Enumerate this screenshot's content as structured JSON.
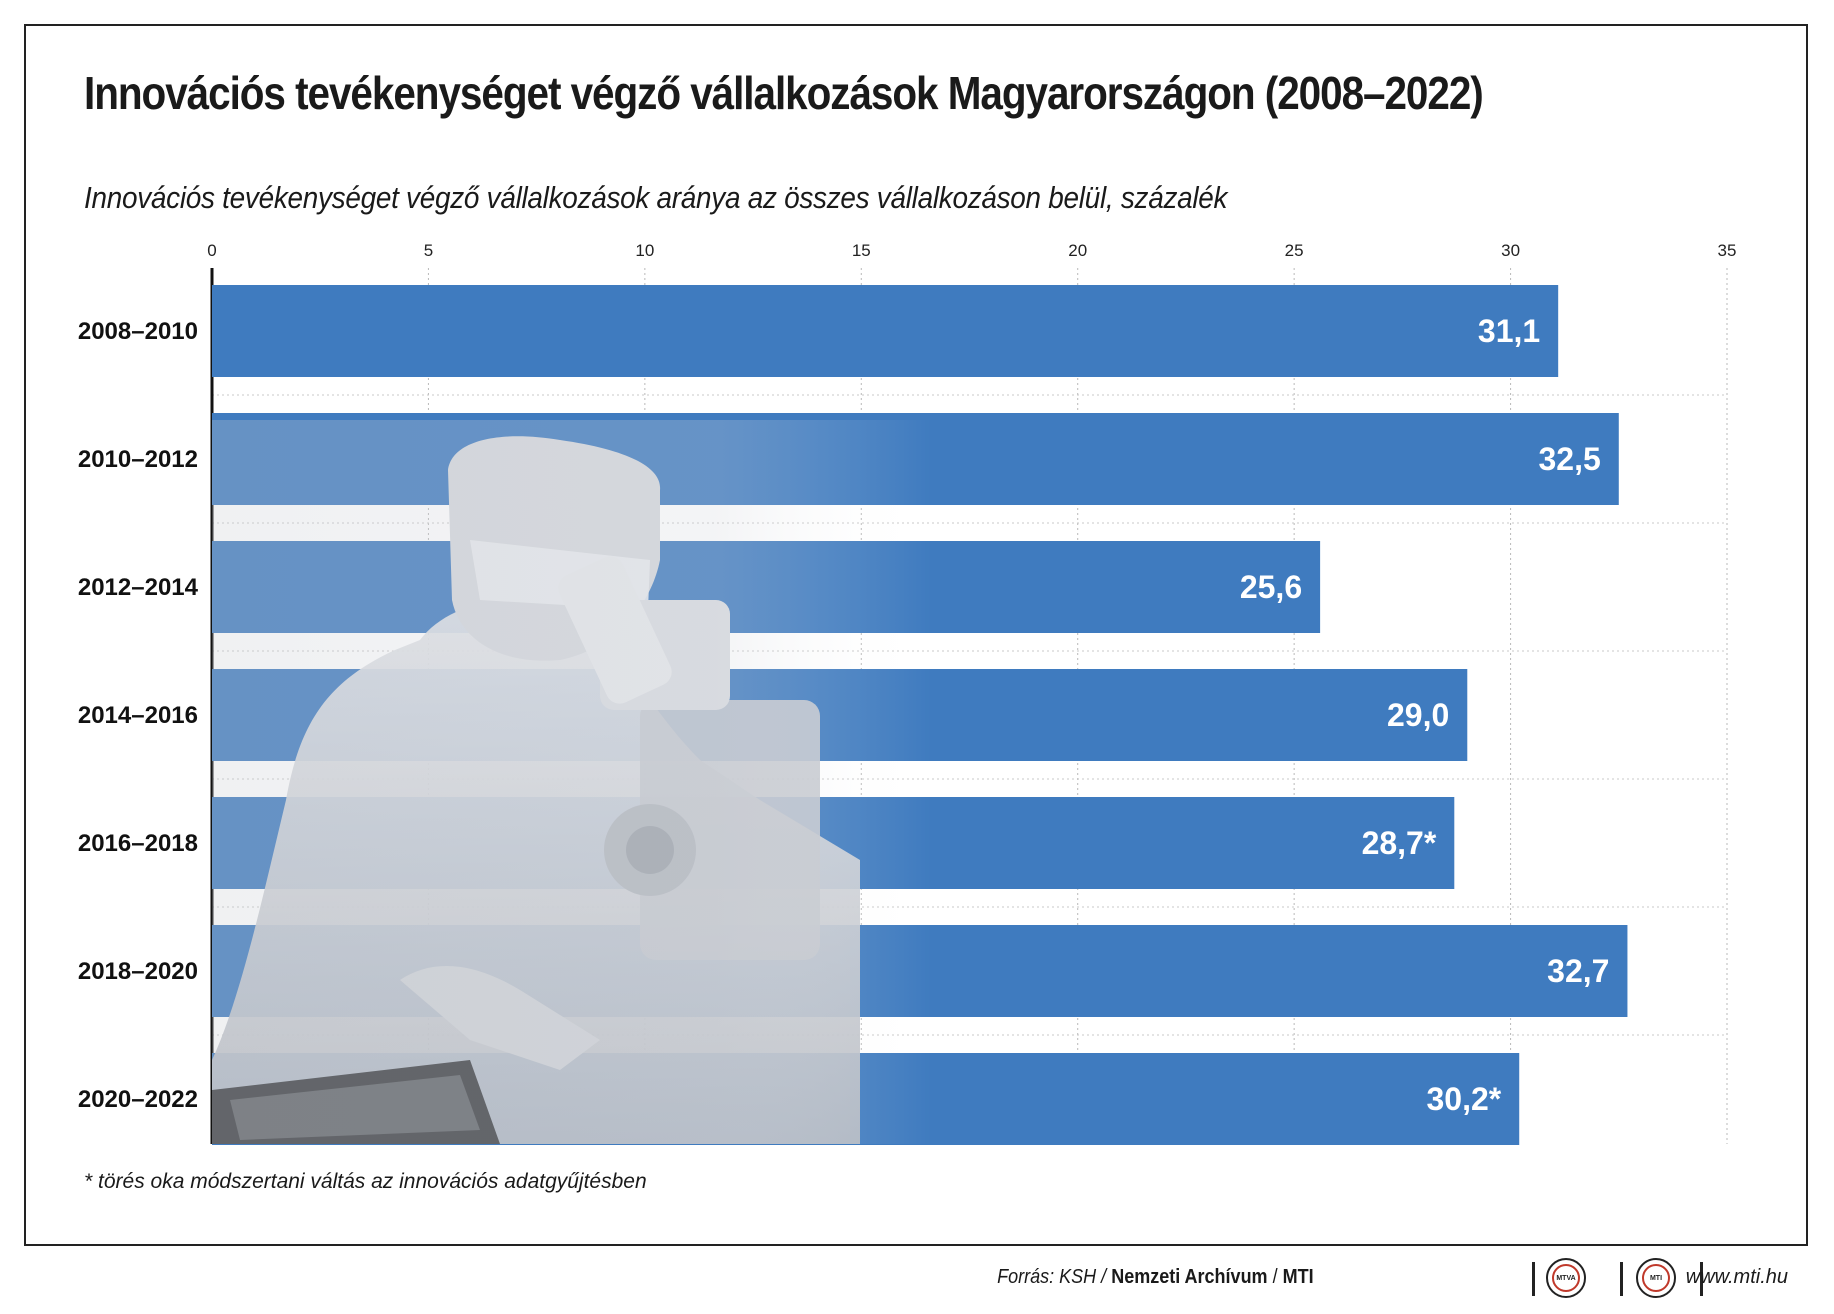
{
  "header": {
    "title": "Innovációs tevékenységet végző vállalkozások Magyarországon (2008–2022)",
    "subtitle": "Innovációs tevékenységet végző vállalkozások aránya az összes vállalkozáson belül, százalék"
  },
  "chart_data": {
    "type": "bar",
    "orientation": "horizontal",
    "categories": [
      "2008–2010",
      "2010–2012",
      "2012–2014",
      "2014–2016",
      "2016–2018",
      "2018–2020",
      "2020–2022"
    ],
    "values": [
      31.1,
      32.5,
      25.6,
      29.0,
      28.7,
      32.7,
      30.2
    ],
    "value_labels": [
      "31,1",
      "32,5",
      "25,6",
      "29,0",
      "28,7*",
      "32,7",
      "30,2*"
    ],
    "xlim": [
      0,
      35
    ],
    "x_ticks": [
      0,
      5,
      10,
      15,
      20,
      25,
      30,
      35
    ],
    "axis_position": "top",
    "grid": true,
    "bar_color": "#3f7bbf"
  },
  "footnote": "* törés oka módszertani váltás az innovációs adatgyűjtésben",
  "footer": {
    "source_label": "Forrás: KSH /",
    "source_archive": "Nemzeti Archívum",
    "source_mti": "MTI",
    "logo_mtva": "MTVA",
    "logo_mti": "MTI",
    "url": "www.mti.hu"
  }
}
